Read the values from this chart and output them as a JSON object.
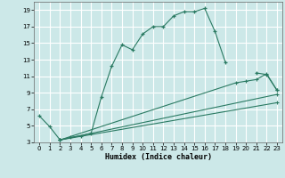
{
  "xlabel": "Humidex (Indice chaleur)",
  "bg_color": "#cce8e8",
  "grid_color": "#ffffff",
  "line_color": "#2a7a62",
  "xlim": [
    -0.5,
    23.5
  ],
  "ylim": [
    3,
    20
  ],
  "xticks": [
    0,
    1,
    2,
    3,
    4,
    5,
    6,
    7,
    8,
    9,
    10,
    11,
    12,
    13,
    14,
    15,
    16,
    17,
    18,
    19,
    20,
    21,
    22,
    23
  ],
  "yticks": [
    3,
    5,
    7,
    9,
    11,
    13,
    15,
    17,
    19
  ],
  "main_x": [
    0,
    1,
    2,
    3,
    4,
    5,
    6,
    7,
    8,
    9,
    10,
    11,
    12,
    13,
    14,
    15,
    16,
    17,
    18,
    21,
    22,
    23
  ],
  "main_y": [
    6.2,
    4.9,
    3.3,
    3.6,
    3.8,
    4.1,
    8.5,
    12.2,
    14.8,
    14.2,
    16.1,
    17.0,
    17.0,
    18.3,
    18.8,
    18.8,
    19.2,
    16.4,
    12.7,
    11.4,
    11.2,
    9.3
  ],
  "line1_x": [
    2,
    19,
    20,
    21,
    22,
    23
  ],
  "line1_y": [
    3.3,
    10.2,
    10.4,
    10.6,
    11.3,
    9.3
  ],
  "line2_x": [
    2,
    23
  ],
  "line2_y": [
    3.3,
    8.8
  ],
  "line3_x": [
    2,
    23
  ],
  "line3_y": [
    3.3,
    7.8
  ]
}
